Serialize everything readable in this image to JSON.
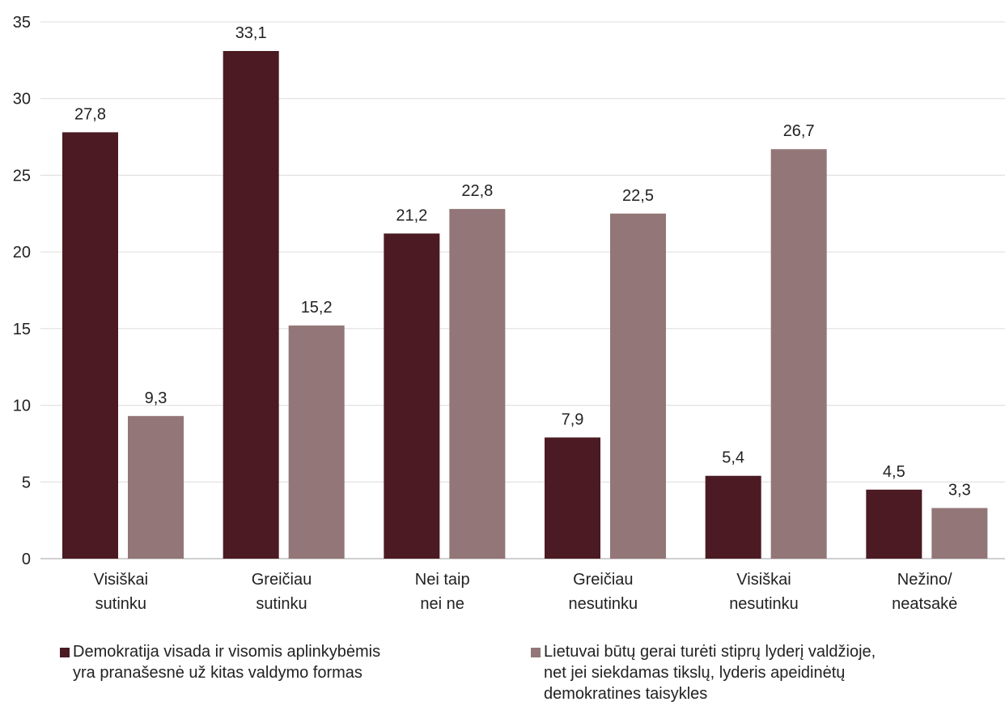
{
  "chart_data": {
    "type": "bar",
    "categories": [
      [
        "Visiškai",
        "sutinku"
      ],
      [
        "Greičiau",
        "sutinku"
      ],
      [
        "Nei taip",
        "nei ne"
      ],
      [
        "Greičiau",
        "nesutinku"
      ],
      [
        "Visiškai",
        "nesutinku"
      ],
      [
        "Nežino/",
        "neatsakė"
      ]
    ],
    "series": [
      {
        "name": "Demokratija visada ir visomis aplinkybėmis\nyra pranašesnė už kitas valdymo formas",
        "values": [
          27.8,
          33.1,
          21.2,
          7.9,
          5.4,
          4.5
        ],
        "labels": [
          "27,8",
          "33,1",
          "21,2",
          "7,9",
          "5,4",
          "4,5"
        ],
        "color": "#4b1a22"
      },
      {
        "name": "Lietuvai būtų gerai turėti stiprų lyderį valdžioje,\nnet jei siekdamas tikslų, lyderis apeidinėtų\ndemokratines taisykles",
        "values": [
          9.3,
          15.2,
          22.8,
          22.5,
          26.7,
          3.3
        ],
        "labels": [
          "9,3",
          "15,2",
          "22,8",
          "22,5",
          "26,7",
          "3,3"
        ],
        "color": "#937677"
      }
    ],
    "yticks": [
      "0",
      "5",
      "10",
      "15",
      "20",
      "25",
      "30",
      "35"
    ],
    "ylim": [
      0,
      35
    ],
    "grid": true,
    "legend_position": "bottom"
  }
}
